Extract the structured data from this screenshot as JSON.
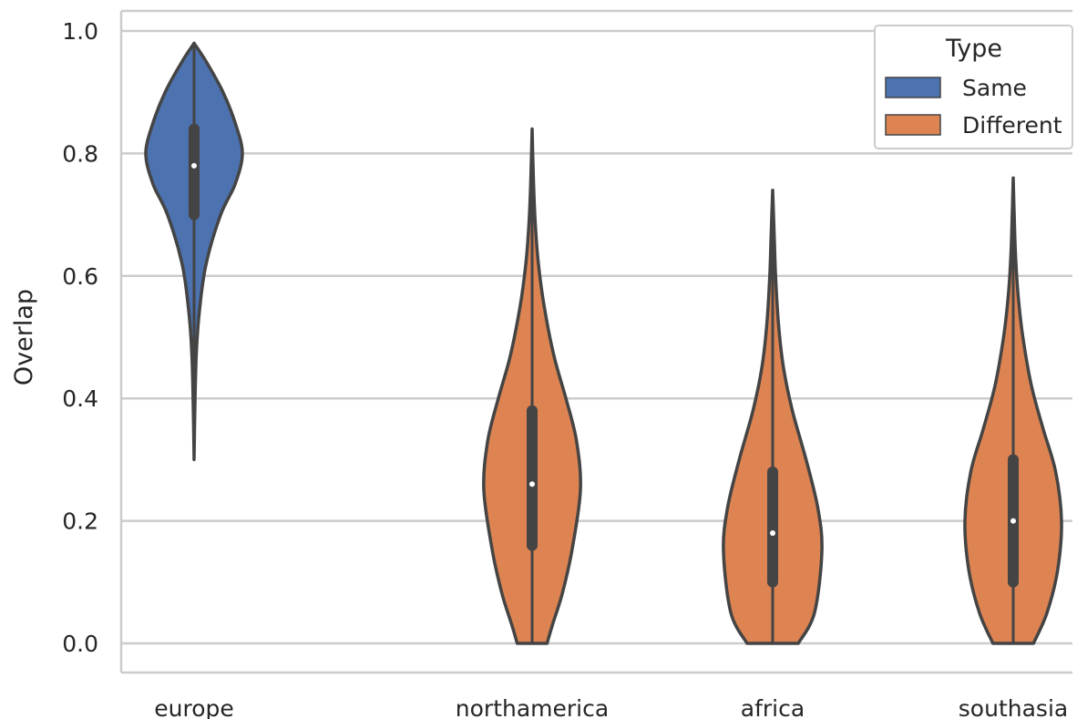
{
  "chart_data": {
    "type": "violin",
    "ylabel": "Overlap",
    "xlabel": "",
    "ylim": [
      0.0,
      1.0
    ],
    "yticks": [
      "0.0",
      "0.2",
      "0.4",
      "0.6",
      "0.8",
      "1.0"
    ],
    "categories": [
      "europe",
      "northamerica",
      "africa",
      "southasia"
    ],
    "grid": "horizontal",
    "legend": {
      "title": "Type",
      "placement": "top-right",
      "entries": [
        {
          "label": "Same",
          "color": "#4c72b0"
        },
        {
          "label": "Different",
          "color": "#dd8452"
        }
      ]
    },
    "series": [
      {
        "name": "Same",
        "color": "#4c72b0",
        "violins": [
          {
            "category": "europe",
            "min": 0.3,
            "max": 0.98,
            "q1": 0.7,
            "median": 0.78,
            "q3": 0.84,
            "whisker_low": 0.5,
            "whisker_high": 0.98,
            "profile": [
              [
                0.3,
                0.0
              ],
              [
                0.4,
                0.02
              ],
              [
                0.48,
                0.05
              ],
              [
                0.55,
                0.12
              ],
              [
                0.62,
                0.25
              ],
              [
                0.7,
                0.55
              ],
              [
                0.75,
                0.85
              ],
              [
                0.8,
                1.0
              ],
              [
                0.85,
                0.85
              ],
              [
                0.9,
                0.6
              ],
              [
                0.95,
                0.25
              ],
              [
                0.98,
                0.0
              ]
            ]
          }
        ]
      },
      {
        "name": "Different",
        "color": "#dd8452",
        "violins": [
          {
            "category": "northamerica",
            "min": 0.0,
            "max": 0.84,
            "q1": 0.16,
            "median": 0.26,
            "q3": 0.38,
            "whisker_low": 0.0,
            "whisker_high": 0.66,
            "profile": [
              [
                0.0,
                0.31
              ],
              [
                0.03,
                0.42
              ],
              [
                0.08,
                0.62
              ],
              [
                0.15,
                0.82
              ],
              [
                0.25,
                1.0
              ],
              [
                0.33,
                0.92
              ],
              [
                0.4,
                0.7
              ],
              [
                0.47,
                0.45
              ],
              [
                0.55,
                0.25
              ],
              [
                0.62,
                0.13
              ],
              [
                0.68,
                0.07
              ],
              [
                0.75,
                0.03
              ],
              [
                0.84,
                0.0
              ]
            ]
          },
          {
            "category": "africa",
            "min": 0.0,
            "max": 0.74,
            "q1": 0.1,
            "median": 0.18,
            "q3": 0.28,
            "whisker_low": 0.0,
            "whisker_high": 0.54,
            "profile": [
              [
                0.0,
                0.52
              ],
              [
                0.05,
                0.85
              ],
              [
                0.15,
                1.0
              ],
              [
                0.22,
                0.92
              ],
              [
                0.3,
                0.68
              ],
              [
                0.38,
                0.4
              ],
              [
                0.45,
                0.22
              ],
              [
                0.52,
                0.12
              ],
              [
                0.6,
                0.06
              ],
              [
                0.67,
                0.03
              ],
              [
                0.74,
                0.0
              ]
            ]
          },
          {
            "category": "southasia",
            "min": 0.0,
            "max": 0.76,
            "q1": 0.1,
            "median": 0.2,
            "q3": 0.3,
            "whisker_low": 0.0,
            "whisker_high": 0.58,
            "profile": [
              [
                0.0,
                0.42
              ],
              [
                0.05,
                0.7
              ],
              [
                0.12,
                0.92
              ],
              [
                0.2,
                1.0
              ],
              [
                0.28,
                0.88
              ],
              [
                0.35,
                0.62
              ],
              [
                0.42,
                0.38
              ],
              [
                0.5,
                0.2
              ],
              [
                0.57,
                0.1
              ],
              [
                0.63,
                0.05
              ],
              [
                0.7,
                0.02
              ],
              [
                0.76,
                0.0
              ]
            ]
          }
        ]
      }
    ]
  }
}
